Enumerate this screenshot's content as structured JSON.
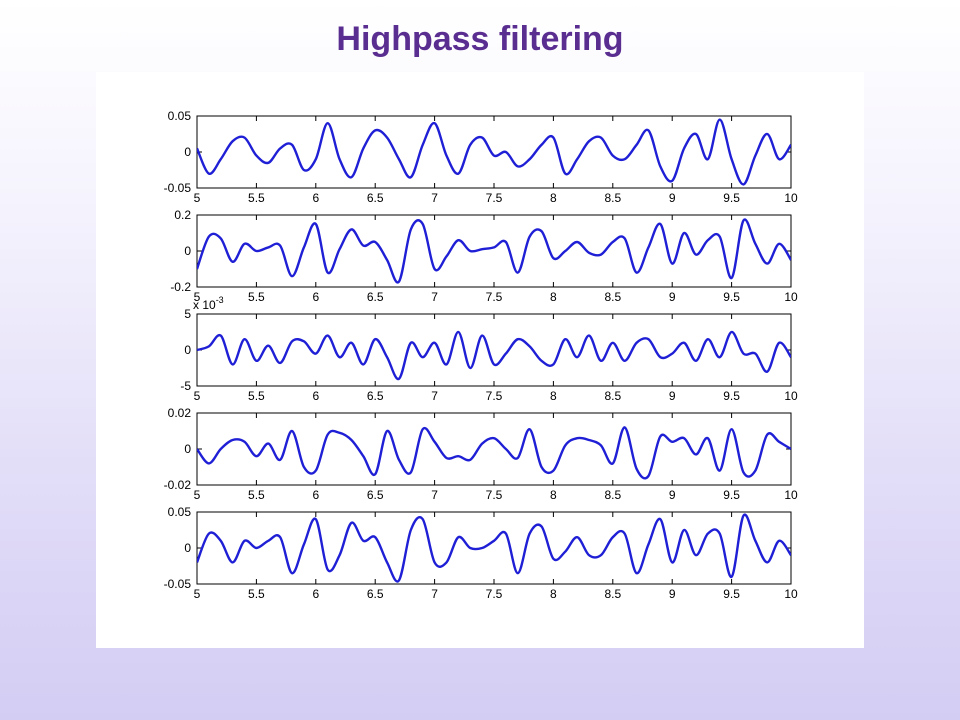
{
  "slide": {
    "title": "Highpass filtering"
  },
  "chart_data": [
    {
      "type": "line",
      "x": [
        5.0,
        5.1,
        5.2,
        5.3,
        5.4,
        5.5,
        5.6,
        5.7,
        5.8,
        5.9,
        6.0,
        6.1,
        6.2,
        6.3,
        6.4,
        6.5,
        6.6,
        6.7,
        6.8,
        6.9,
        7.0,
        7.1,
        7.2,
        7.3,
        7.4,
        7.5,
        7.6,
        7.7,
        7.8,
        7.9,
        8.0,
        8.1,
        8.2,
        8.3,
        8.4,
        8.5,
        8.6,
        8.7,
        8.8,
        8.9,
        9.0,
        9.1,
        9.2,
        9.3,
        9.4,
        9.5,
        9.6,
        9.7,
        9.8,
        9.9,
        10.0
      ],
      "series": [
        {
          "values": [
            0.005,
            -0.03,
            -0.01,
            0.015,
            0.02,
            -0.005,
            -0.015,
            0.005,
            0.01,
            -0.025,
            -0.01,
            0.04,
            -0.01,
            -0.035,
            0.005,
            0.03,
            0.02,
            -0.01,
            -0.035,
            0.01,
            0.04,
            -0.005,
            -0.03,
            0.01,
            0.02,
            -0.005,
            0.0,
            -0.02,
            -0.01,
            0.01,
            0.02,
            -0.03,
            -0.01,
            0.015,
            0.02,
            -0.005,
            -0.01,
            0.01,
            0.03,
            -0.02,
            -0.04,
            0.005,
            0.025,
            -0.01,
            0.045,
            -0.01,
            -0.045,
            -0.005,
            0.025,
            -0.01,
            0.01
          ]
        }
      ],
      "xlim": [
        5,
        10
      ],
      "ylim": [
        -0.05,
        0.05
      ],
      "xticks": [
        "5",
        "5.5",
        "6",
        "6.5",
        "7",
        "7.5",
        "8",
        "8.5",
        "9",
        "9.5",
        "10"
      ],
      "yticks": [
        "0.05",
        "0",
        "-0.05"
      ],
      "exponent": "",
      "line_color": "#1f1fd6"
    },
    {
      "type": "line",
      "x": [
        5.0,
        5.1,
        5.2,
        5.3,
        5.4,
        5.5,
        5.6,
        5.7,
        5.8,
        5.9,
        6.0,
        6.1,
        6.2,
        6.3,
        6.4,
        6.5,
        6.6,
        6.7,
        6.8,
        6.9,
        7.0,
        7.1,
        7.2,
        7.3,
        7.4,
        7.5,
        7.6,
        7.7,
        7.8,
        7.9,
        8.0,
        8.1,
        8.2,
        8.3,
        8.4,
        8.5,
        8.6,
        8.7,
        8.8,
        8.9,
        9.0,
        9.1,
        9.2,
        9.3,
        9.4,
        9.5,
        9.6,
        9.7,
        9.8,
        9.9,
        10.0
      ],
      "series": [
        {
          "values": [
            -0.1,
            0.08,
            0.07,
            -0.06,
            0.04,
            0.0,
            0.02,
            0.03,
            -0.14,
            0.02,
            0.15,
            -0.12,
            0.01,
            0.12,
            0.03,
            0.05,
            -0.05,
            -0.17,
            0.12,
            0.15,
            -0.1,
            -0.03,
            0.06,
            0.0,
            0.01,
            0.02,
            0.05,
            -0.12,
            0.08,
            0.11,
            -0.04,
            0.0,
            0.05,
            -0.01,
            -0.02,
            0.05,
            0.07,
            -0.12,
            0.02,
            0.15,
            -0.07,
            0.1,
            -0.02,
            0.06,
            0.08,
            -0.15,
            0.17,
            0.04,
            -0.07,
            0.04,
            -0.05
          ]
        }
      ],
      "xlim": [
        5,
        10
      ],
      "ylim": [
        -0.2,
        0.2
      ],
      "xticks": [
        "5",
        "5.5",
        "6",
        "6.5",
        "7",
        "7.5",
        "8",
        "8.5",
        "9",
        "9.5",
        "10"
      ],
      "yticks": [
        "0.2",
        "0",
        "-0.2"
      ],
      "exponent": "",
      "line_color": "#1f1fd6"
    },
    {
      "type": "line",
      "x": [
        5.0,
        5.1,
        5.2,
        5.3,
        5.4,
        5.5,
        5.6,
        5.7,
        5.8,
        5.9,
        6.0,
        6.1,
        6.2,
        6.3,
        6.4,
        6.5,
        6.6,
        6.7,
        6.8,
        6.9,
        7.0,
        7.1,
        7.2,
        7.3,
        7.4,
        7.5,
        7.6,
        7.7,
        7.8,
        7.9,
        8.0,
        8.1,
        8.2,
        8.3,
        8.4,
        8.5,
        8.6,
        8.7,
        8.8,
        8.9,
        9.0,
        9.1,
        9.2,
        9.3,
        9.4,
        9.5,
        9.6,
        9.7,
        9.8,
        9.9,
        10.0
      ],
      "series": [
        {
          "values": [
            0.0,
            0.5,
            2.0,
            -2.0,
            1.5,
            -1.5,
            0.6,
            -1.8,
            1.2,
            1.2,
            -0.5,
            2.0,
            -1.0,
            1.0,
            -2.0,
            1.5,
            -1.0,
            -4.0,
            1.0,
            -1.0,
            1.0,
            -2.0,
            2.5,
            -2.5,
            2.0,
            -2.0,
            -0.5,
            1.5,
            0.5,
            -1.5,
            -2.0,
            1.5,
            -1.0,
            2.0,
            -1.5,
            1.0,
            -1.5,
            1.0,
            1.5,
            -1.0,
            -0.5,
            1.0,
            -1.5,
            1.5,
            -1.0,
            2.5,
            -0.5,
            -0.5,
            -3.0,
            1.0,
            -1.0
          ]
        }
      ],
      "xlim": [
        5,
        10
      ],
      "ylim": [
        -5,
        5
      ],
      "xticks": [
        "5",
        "5.5",
        "6",
        "6.5",
        "7",
        "7.5",
        "8",
        "8.5",
        "9",
        "9.5",
        "10"
      ],
      "yticks": [
        "5",
        "0",
        "-5"
      ],
      "exponent": "x 10",
      "exponent_power": "-3",
      "line_color": "#1f1fd6"
    },
    {
      "type": "line",
      "x": [
        5.0,
        5.1,
        5.2,
        5.3,
        5.4,
        5.5,
        5.6,
        5.7,
        5.8,
        5.9,
        6.0,
        6.1,
        6.2,
        6.3,
        6.4,
        6.5,
        6.6,
        6.7,
        6.8,
        6.9,
        7.0,
        7.1,
        7.2,
        7.3,
        7.4,
        7.5,
        7.6,
        7.7,
        7.8,
        7.9,
        8.0,
        8.1,
        8.2,
        8.3,
        8.4,
        8.5,
        8.6,
        8.7,
        8.8,
        8.9,
        9.0,
        9.1,
        9.2,
        9.3,
        9.4,
        9.5,
        9.6,
        9.7,
        9.8,
        9.9,
        10.0
      ],
      "series": [
        {
          "values": [
            0.0,
            -0.008,
            0.0,
            0.005,
            0.004,
            -0.004,
            0.003,
            -0.006,
            0.01,
            -0.01,
            -0.012,
            0.008,
            0.009,
            0.005,
            -0.004,
            -0.014,
            0.01,
            -0.006,
            -0.013,
            0.011,
            0.004,
            -0.005,
            -0.004,
            -0.006,
            0.003,
            0.006,
            0.0,
            -0.005,
            0.011,
            -0.01,
            -0.012,
            0.002,
            0.006,
            0.005,
            0.002,
            -0.008,
            0.012,
            -0.011,
            -0.015,
            0.007,
            0.004,
            0.006,
            -0.003,
            0.006,
            -0.012,
            0.011,
            -0.013,
            -0.012,
            0.008,
            0.004,
            0.0
          ]
        }
      ],
      "xlim": [
        5,
        10
      ],
      "ylim": [
        -0.02,
        0.02
      ],
      "xticks": [
        "5",
        "5.5",
        "6",
        "6.5",
        "7",
        "7.5",
        "8",
        "8.5",
        "9",
        "9.5",
        "10"
      ],
      "yticks": [
        "0.02",
        "0",
        "-0.02"
      ],
      "exponent": "",
      "line_color": "#1f1fd6"
    },
    {
      "type": "line",
      "x": [
        5.0,
        5.1,
        5.2,
        5.3,
        5.4,
        5.5,
        5.6,
        5.7,
        5.8,
        5.9,
        6.0,
        6.1,
        6.2,
        6.3,
        6.4,
        6.5,
        6.6,
        6.7,
        6.8,
        6.9,
        7.0,
        7.1,
        7.2,
        7.3,
        7.4,
        7.5,
        7.6,
        7.7,
        7.8,
        7.9,
        8.0,
        8.1,
        8.2,
        8.3,
        8.4,
        8.5,
        8.6,
        8.7,
        8.8,
        8.9,
        9.0,
        9.1,
        9.2,
        9.3,
        9.4,
        9.5,
        9.6,
        9.7,
        9.8,
        9.9,
        10.0
      ],
      "series": [
        {
          "values": [
            -0.02,
            0.02,
            0.01,
            -0.02,
            0.01,
            0.0,
            0.01,
            0.015,
            -0.035,
            0.005,
            0.04,
            -0.03,
            -0.01,
            0.035,
            0.01,
            0.015,
            -0.02,
            -0.045,
            0.025,
            0.04,
            -0.02,
            -0.02,
            0.015,
            0.0,
            0.0,
            0.01,
            0.02,
            -0.035,
            0.02,
            0.03,
            -0.015,
            -0.005,
            0.015,
            -0.01,
            -0.01,
            0.015,
            0.02,
            -0.035,
            0.005,
            0.04,
            -0.02,
            0.025,
            -0.01,
            0.02,
            0.02,
            -0.04,
            0.045,
            0.01,
            -0.02,
            0.01,
            -0.01
          ]
        }
      ],
      "xlim": [
        5,
        10
      ],
      "ylim": [
        -0.05,
        0.05
      ],
      "xticks": [
        "5",
        "5.5",
        "6",
        "6.5",
        "7",
        "7.5",
        "8",
        "8.5",
        "9",
        "9.5",
        "10"
      ],
      "yticks": [
        "0.05",
        "0",
        "-0.05"
      ],
      "exponent": "",
      "line_color": "#1f1fd6"
    }
  ]
}
